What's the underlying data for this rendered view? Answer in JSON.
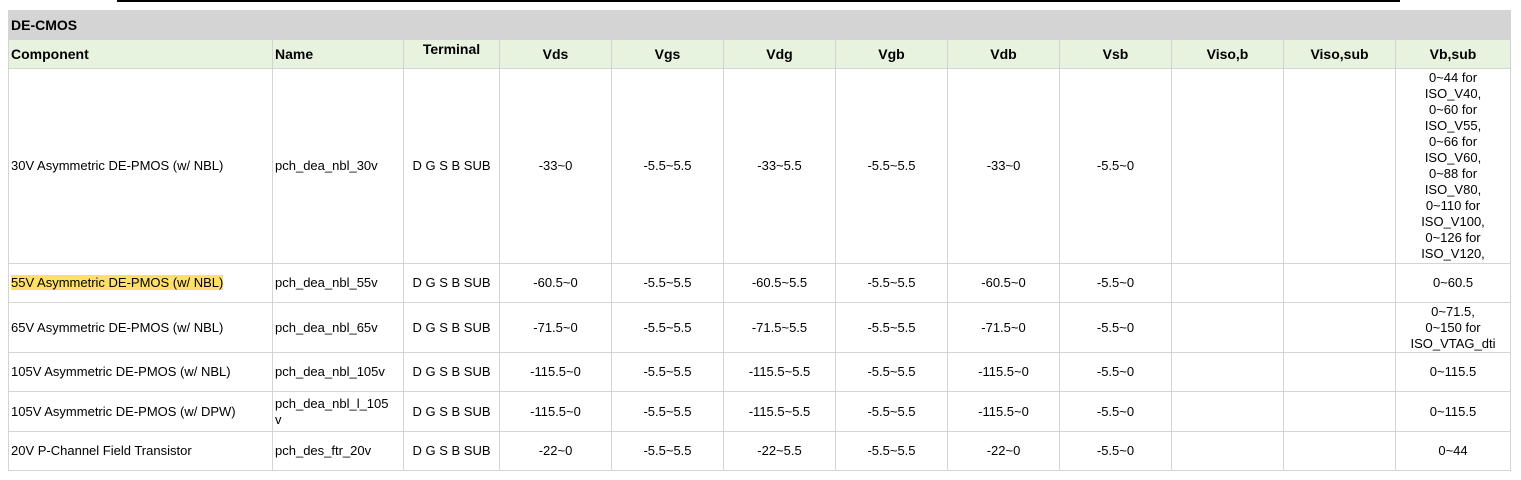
{
  "section": "DE-CMOS",
  "headers": [
    "Component",
    "Name",
    "Terminal",
    "Vds",
    "Vgs",
    "Vdg",
    "Vgb",
    "Vdb",
    "Vsb",
    "Viso,b",
    "Viso,sub",
    "Vb,sub"
  ],
  "rows": [
    {
      "component": "30V Asymmetric DE-PMOS (w/ NBL)",
      "name": "pch_dea_nbl_30v",
      "terminal": "D G S B SUB",
      "vds": "-33~0",
      "vgs": "-5.5~5.5",
      "vdg": "-33~5.5",
      "vgb": "-5.5~5.5",
      "vdb": "-33~0",
      "vsb": "-5.5~0",
      "viso_b": "",
      "viso_sub": "",
      "vb_sub": "0~44 for\nISO_V40,\n0~60 for\nISO_V55,\n0~66 for\nISO_V60,\n0~88 for\nISO_V80,\n0~110 for\nISO_V100,\n0~126 for\nISO_V120,"
    },
    {
      "component": "55V Asymmetric DE-PMOS (w/ NBL)",
      "name": "pch_dea_nbl_55v",
      "terminal": "D G S B SUB",
      "vds": "-60.5~0",
      "vgs": "-5.5~5.5",
      "vdg": "-60.5~5.5",
      "vgb": "-5.5~5.5",
      "vdb": "-60.5~0",
      "vsb": "-5.5~0",
      "viso_b": "",
      "viso_sub": "",
      "vb_sub": "0~60.5",
      "highlighted": true
    },
    {
      "component": "65V Asymmetric DE-PMOS (w/ NBL)",
      "name": "pch_dea_nbl_65v",
      "terminal": "D G S B SUB",
      "vds": "-71.5~0",
      "vgs": "-5.5~5.5",
      "vdg": "-71.5~5.5",
      "vgb": "-5.5~5.5",
      "vdb": "-71.5~0",
      "vsb": "-5.5~0",
      "viso_b": "",
      "viso_sub": "",
      "vb_sub": "0~71.5,\n0~150 for\nISO_VTAG_dti"
    },
    {
      "component": "105V Asymmetric DE-PMOS (w/ NBL)",
      "name": "pch_dea_nbl_105v",
      "terminal": "D G S B SUB",
      "vds": "-115.5~0",
      "vgs": "-5.5~5.5",
      "vdg": "-115.5~5.5",
      "vgb": "-5.5~5.5",
      "vdb": "-115.5~0",
      "vsb": "-5.5~0",
      "viso_b": "",
      "viso_sub": "",
      "vb_sub": "0~115.5"
    },
    {
      "component": "105V Asymmetric DE-PMOS (w/ DPW)",
      "name": "pch_dea_nbl_l_105\nv",
      "terminal": "D G S B SUB",
      "vds": "-115.5~0",
      "vgs": "-5.5~5.5",
      "vdg": "-115.5~5.5",
      "vgb": "-5.5~5.5",
      "vdb": "-115.5~0",
      "vsb": "-5.5~0",
      "viso_b": "",
      "viso_sub": "",
      "vb_sub": "0~115.5"
    },
    {
      "component": "20V P-Channel Field Transistor",
      "name": "pch_des_ftr_20v",
      "terminal": "D G S B SUB",
      "vds": "-22~0",
      "vgs": "-5.5~5.5",
      "vdg": "-22~5.5",
      "vgb": "-5.5~5.5",
      "vdb": "-22~0",
      "vsb": "-5.5~0",
      "viso_b": "",
      "viso_sub": "",
      "vb_sub": "0~44"
    }
  ],
  "colors": {
    "section_bg": "#d4d4d4",
    "header_bg": "#e8f3df",
    "highlight": "#ffe066",
    "border": "#d4d4d4"
  }
}
